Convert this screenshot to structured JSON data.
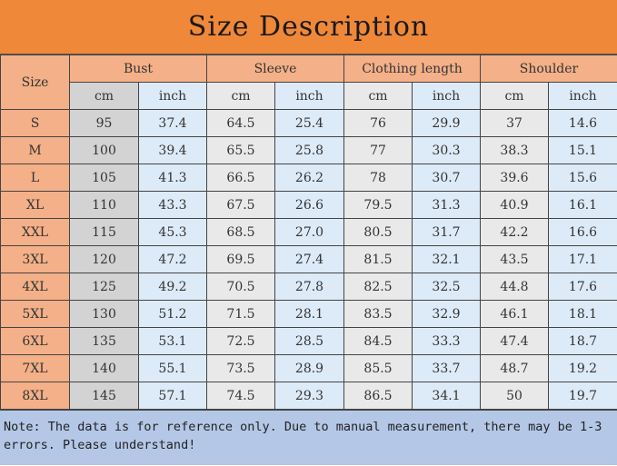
{
  "title": "Size Description",
  "headers": {
    "size": "Size",
    "groups": [
      "Bust",
      "Sleeve",
      "Clothing length",
      "Shoulder"
    ],
    "cm": "cm",
    "inch": "inch"
  },
  "rows": [
    [
      "S",
      "95",
      "37.4",
      "64.5",
      "25.4",
      "76",
      "29.9",
      "37",
      "14.6"
    ],
    [
      "M",
      "100",
      "39.4",
      "65.5",
      "25.8",
      "77",
      "30.3",
      "38.3",
      "15.1"
    ],
    [
      "L",
      "105",
      "41.3",
      "66.5",
      "26.2",
      "78",
      "30.7",
      "39.6",
      "15.6"
    ],
    [
      "XL",
      "110",
      "43.3",
      "67.5",
      "26.6",
      "79.5",
      "31.3",
      "40.9",
      "16.1"
    ],
    [
      "XXL",
      "115",
      "45.3",
      "68.5",
      "27.0",
      "80.5",
      "31.7",
      "42.2",
      "16.6"
    ],
    [
      "3XL",
      "120",
      "47.2",
      "69.5",
      "27.4",
      "81.5",
      "32.1",
      "43.5",
      "17.1"
    ],
    [
      "4XL",
      "125",
      "49.2",
      "70.5",
      "27.8",
      "82.5",
      "32.5",
      "44.8",
      "17.6"
    ],
    [
      "5XL",
      "130",
      "51.2",
      "71.5",
      "28.1",
      "83.5",
      "32.9",
      "46.1",
      "18.1"
    ],
    [
      "6XL",
      "135",
      "53.1",
      "72.5",
      "28.5",
      "84.5",
      "33.3",
      "47.4",
      "18.7"
    ],
    [
      "7XL",
      "140",
      "55.1",
      "73.5",
      "28.9",
      "85.5",
      "33.7",
      "48.7",
      "19.2"
    ],
    [
      "8XL",
      "145",
      "57.1",
      "74.5",
      "29.3",
      "86.5",
      "34.1",
      "50",
      "19.7"
    ]
  ],
  "note": "Note: The data is for reference only. Due to manual measurement, there may be 1-3 errors. Please understand!",
  "colors": {
    "title_bg": "#ef8838",
    "header_bg": "#f4b088",
    "cm_bg": "#e9e9e9",
    "inch_bg": "#ddeaf7",
    "note_bg": "#b4c7e7"
  }
}
